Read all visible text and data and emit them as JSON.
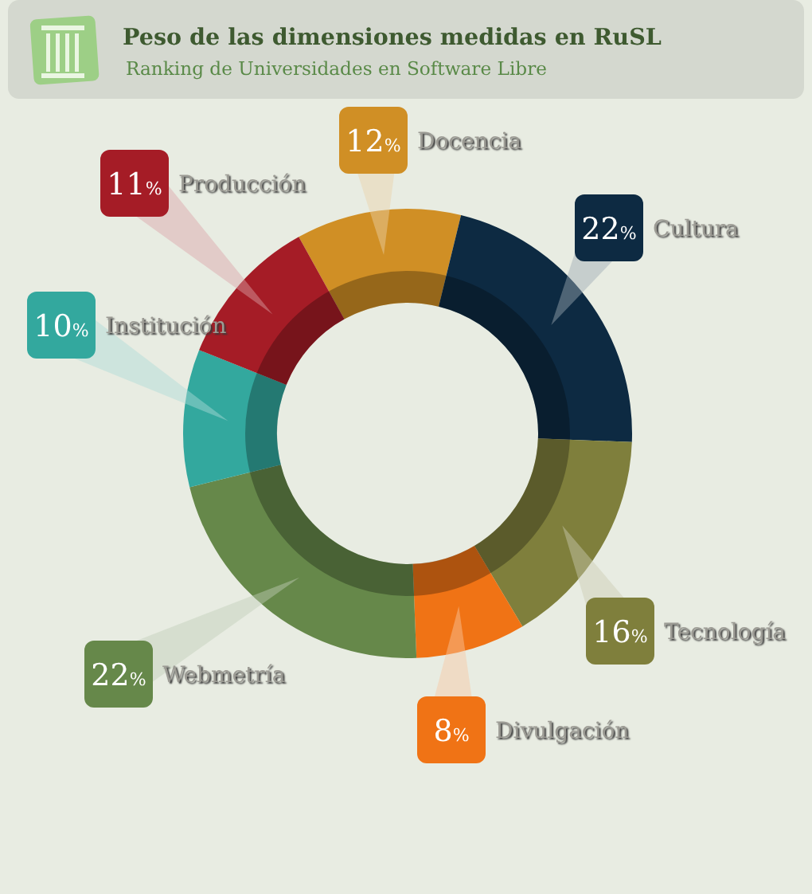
{
  "chart_data": {
    "type": "donut",
    "title": "Peso de las dimensiones medidas en RuSL",
    "subtitle": "Ranking de Universidades en Software Libre",
    "categories": [
      "Docencia",
      "Cultura",
      "Tecnología",
      "Divulgación",
      "Webmetría",
      "Institución",
      "Producción"
    ],
    "values": [
      12,
      22,
      16,
      8,
      22,
      10,
      11
    ],
    "colors": [
      "#d08f25",
      "#0d2a42",
      "#7f7f3c",
      "#f07315",
      "#66884a",
      "#33a89e",
      "#a51c26"
    ],
    "value_labels": [
      "12%",
      "22%",
      "16%",
      "8%",
      "22%",
      "10%",
      "11%"
    ]
  }
}
